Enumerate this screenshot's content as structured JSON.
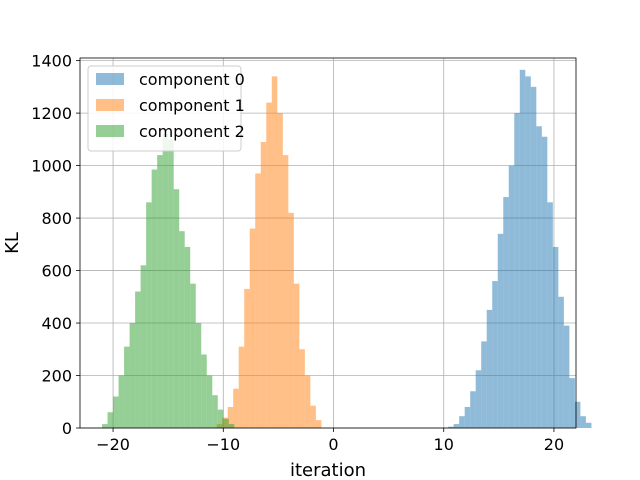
{
  "chart_data": {
    "type": "bar",
    "title": "",
    "xlabel": "iteration",
    "ylabel": "KL",
    "xlim": [
      -23,
      22
    ],
    "ylim": [
      0,
      1410
    ],
    "xticks": [
      -20,
      -10,
      0,
      10,
      20
    ],
    "yticks": [
      0,
      200,
      400,
      600,
      800,
      1000,
      1200,
      1400
    ],
    "grid": true,
    "legend_position": "top-left",
    "bin_width": 0.5,
    "series": [
      {
        "name": "component 0",
        "color": "#1f77b4",
        "bin_start": 10.4,
        "counts": [
          5,
          15,
          45,
          80,
          140,
          220,
          330,
          450,
          560,
          740,
          880,
          1000,
          1200,
          1365,
          1340,
          1300,
          1150,
          1110,
          860,
          690,
          500,
          390,
          190,
          100,
          45,
          20
        ]
      },
      {
        "name": "component 1",
        "color": "#ff7f0e",
        "bin_start": -10.6,
        "counts": [
          15,
          40,
          80,
          150,
          310,
          530,
          760,
          970,
          1090,
          1240,
          1340,
          1200,
          1040,
          820,
          550,
          300,
          200,
          85,
          30
        ]
      },
      {
        "name": "component 2",
        "color": "#2ca02c",
        "bin_start": -21,
        "counts": [
          15,
          60,
          120,
          200,
          310,
          400,
          520,
          620,
          860,
          985,
          1040,
          1120,
          1100,
          910,
          750,
          690,
          550,
          400,
          280,
          200,
          125,
          70,
          35,
          15
        ]
      }
    ]
  }
}
